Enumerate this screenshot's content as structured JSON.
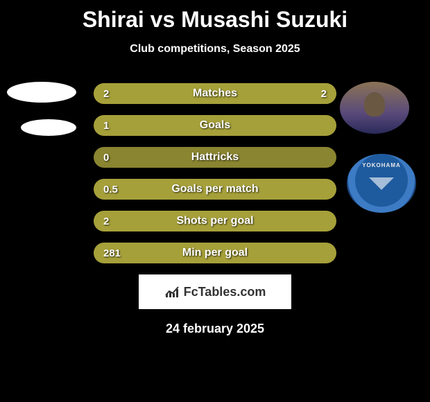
{
  "title": "Shirai vs Musashi Suzuki",
  "subtitle": "Club competitions, Season 2025",
  "crest_label": "YOKOHAMA",
  "colors": {
    "background": "#000000",
    "text": "#ffffff",
    "bar_olive": "#a6a03a",
    "bar_olive_dark": "#8a8530",
    "placeholder_white": "#ffffff",
    "crest_blue": "#1e5a9e",
    "logo_bg": "#ffffff",
    "logo_text": "#333333"
  },
  "bars": [
    {
      "label": "Matches",
      "left": "2",
      "right": "2",
      "left_pct": 50,
      "right_pct": 50,
      "left_color": "#a6a03a",
      "right_color": "#a6a03a"
    },
    {
      "label": "Goals",
      "left": "1",
      "right": "",
      "left_pct": 100,
      "right_pct": 0,
      "left_color": "#a6a03a",
      "right_color": "#a6a03a"
    },
    {
      "label": "Hattricks",
      "left": "0",
      "right": "",
      "left_pct": 100,
      "right_pct": 0,
      "left_color": "#8a8530",
      "right_color": "#8a8530"
    },
    {
      "label": "Goals per match",
      "left": "0.5",
      "right": "",
      "left_pct": 100,
      "right_pct": 0,
      "left_color": "#a6a03a",
      "right_color": "#a6a03a"
    },
    {
      "label": "Shots per goal",
      "left": "2",
      "right": "",
      "left_pct": 100,
      "right_pct": 0,
      "left_color": "#a6a03a",
      "right_color": "#a6a03a"
    },
    {
      "label": "Min per goal",
      "left": "281",
      "right": "",
      "left_pct": 100,
      "right_pct": 0,
      "left_color": "#a6a03a",
      "right_color": "#a6a03a"
    }
  ],
  "logo_text": "FcTables.com",
  "date": "24 february 2025"
}
